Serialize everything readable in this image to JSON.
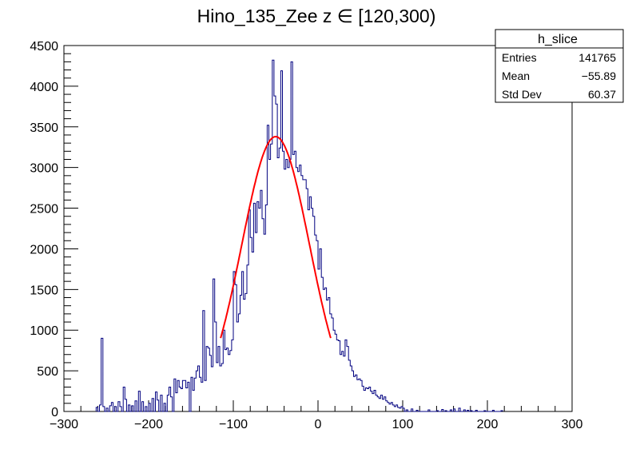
{
  "chart_data": {
    "type": "histogram",
    "title": "Hino_135_Zee z  ∈ [120,300)",
    "xlabel": "",
    "ylabel": "",
    "xlim": [
      -300,
      300
    ],
    "ylim": [
      0,
      4500
    ],
    "x_ticks": [
      -300,
      -200,
      -100,
      0,
      100,
      200,
      300
    ],
    "x_tick_labels": [
      "−300",
      "−200",
      "−100",
      "0",
      "100",
      "200",
      "300"
    ],
    "y_ticks": [
      0,
      500,
      1000,
      1500,
      2000,
      2500,
      3000,
      3500,
      4000,
      4500
    ],
    "y_tick_labels": [
      "0",
      "500",
      "1000",
      "1500",
      "2000",
      "2500",
      "3000",
      "3500",
      "4000",
      "4500"
    ],
    "histogram_color": "#000080",
    "fit_color": "#ff0000",
    "stats_box": {
      "name": "h_slice",
      "rows": [
        {
          "label": "Entries",
          "value": "141765"
        },
        {
          "label": "Mean",
          "value": "−55.89"
        },
        {
          "label": "Std Dev",
          "value": "60.37"
        }
      ]
    },
    "fit": {
      "type": "gaussian",
      "amplitude": 3380,
      "mean": -50,
      "sigma": 40,
      "range": [
        -115,
        15
      ]
    },
    "histogram": {
      "bin_width": 2,
      "bins": [
        [
          -262,
          50
        ],
        [
          -258,
          80
        ],
        [
          -256,
          900
        ],
        [
          -254,
          60
        ],
        [
          -250,
          40
        ],
        [
          -246,
          70
        ],
        [
          -244,
          110
        ],
        [
          -240,
          60
        ],
        [
          -236,
          120
        ],
        [
          -234,
          60
        ],
        [
          -230,
          300
        ],
        [
          -228,
          150
        ],
        [
          -224,
          80
        ],
        [
          -220,
          70
        ],
        [
          -216,
          130
        ],
        [
          -212,
          250
        ],
        [
          -208,
          120
        ],
        [
          -204,
          60
        ],
        [
          -200,
          100
        ],
        [
          -196,
          160
        ],
        [
          -192,
          240
        ],
        [
          -190,
          140
        ],
        [
          -186,
          200
        ],
        [
          -182,
          100
        ],
        [
          -178,
          200
        ],
        [
          -176,
          300
        ],
        [
          -174,
          180
        ],
        [
          -170,
          400
        ],
        [
          -168,
          230
        ],
        [
          -166,
          380
        ],
        [
          -164,
          300
        ],
        [
          -162,
          280
        ],
        [
          -160,
          380
        ],
        [
          -158,
          380
        ],
        [
          -156,
          290
        ],
        [
          -154,
          360
        ],
        [
          -150,
          420
        ],
        [
          -148,
          260
        ],
        [
          -146,
          410
        ],
        [
          -144,
          500
        ],
        [
          -142,
          560
        ],
        [
          -140,
          420
        ],
        [
          -138,
          360
        ],
        [
          -136,
          1240
        ],
        [
          -134,
          380
        ],
        [
          -132,
          800
        ],
        [
          -130,
          780
        ],
        [
          -128,
          690
        ],
        [
          -126,
          550
        ],
        [
          -124,
          1630
        ],
        [
          -122,
          1100
        ],
        [
          -120,
          600
        ],
        [
          -118,
          800
        ],
        [
          -116,
          560
        ],
        [
          -114,
          590
        ],
        [
          -112,
          1000
        ],
        [
          -110,
          760
        ],
        [
          -108,
          780
        ],
        [
          -106,
          700
        ],
        [
          -104,
          750
        ],
        [
          -102,
          880
        ],
        [
          -100,
          1720
        ],
        [
          -98,
          1560
        ],
        [
          -96,
          1100
        ],
        [
          -94,
          1200
        ],
        [
          -92,
          1430
        ],
        [
          -90,
          1720
        ],
        [
          -88,
          1380
        ],
        [
          -86,
          1450
        ],
        [
          -84,
          1800
        ],
        [
          -82,
          2480
        ],
        [
          -80,
          2140
        ],
        [
          -78,
          1960
        ],
        [
          -76,
          2560
        ],
        [
          -74,
          2200
        ],
        [
          -72,
          2580
        ],
        [
          -70,
          2500
        ],
        [
          -68,
          2720
        ],
        [
          -66,
          2370
        ],
        [
          -64,
          2180
        ],
        [
          -62,
          2540
        ],
        [
          -60,
          3520
        ],
        [
          -58,
          3100
        ],
        [
          -56,
          3290
        ],
        [
          -54,
          4320
        ],
        [
          -52,
          3880
        ],
        [
          -50,
          3780
        ],
        [
          -48,
          3120
        ],
        [
          -46,
          3240
        ],
        [
          -44,
          4190
        ],
        [
          -42,
          3200
        ],
        [
          -40,
          2980
        ],
        [
          -38,
          3100
        ],
        [
          -36,
          3000
        ],
        [
          -34,
          3100
        ],
        [
          -32,
          4300
        ],
        [
          -30,
          3160
        ],
        [
          -28,
          3200
        ],
        [
          -26,
          3000
        ],
        [
          -24,
          2950
        ],
        [
          -22,
          3030
        ],
        [
          -20,
          2900
        ],
        [
          -18,
          2850
        ],
        [
          -16,
          2850
        ],
        [
          -14,
          2740
        ],
        [
          -12,
          2480
        ],
        [
          -10,
          2640
        ],
        [
          -8,
          2500
        ],
        [
          -6,
          2400
        ],
        [
          -4,
          2170
        ],
        [
          -2,
          2100
        ],
        [
          0,
          1750
        ],
        [
          2,
          2000
        ],
        [
          4,
          1650
        ],
        [
          6,
          1500
        ],
        [
          8,
          1520
        ],
        [
          10,
          1370
        ],
        [
          12,
          1400
        ],
        [
          14,
          1200
        ],
        [
          16,
          1150
        ],
        [
          18,
          1000
        ],
        [
          20,
          950
        ],
        [
          22,
          880
        ],
        [
          24,
          870
        ],
        [
          26,
          700
        ],
        [
          28,
          740
        ],
        [
          30,
          680
        ],
        [
          32,
          880
        ],
        [
          34,
          800
        ],
        [
          36,
          630
        ],
        [
          38,
          560
        ],
        [
          40,
          500
        ],
        [
          42,
          430
        ],
        [
          44,
          450
        ],
        [
          46,
          390
        ],
        [
          48,
          400
        ],
        [
          50,
          380
        ],
        [
          52,
          310
        ],
        [
          54,
          260
        ],
        [
          56,
          290
        ],
        [
          58,
          280
        ],
        [
          60,
          300
        ],
        [
          62,
          250
        ],
        [
          64,
          220
        ],
        [
          66,
          260
        ],
        [
          68,
          200
        ],
        [
          70,
          180
        ],
        [
          72,
          160
        ],
        [
          74,
          200
        ],
        [
          76,
          150
        ],
        [
          78,
          180
        ],
        [
          80,
          130
        ],
        [
          82,
          110
        ],
        [
          84,
          90
        ],
        [
          86,
          110
        ],
        [
          88,
          80
        ],
        [
          90,
          60
        ],
        [
          92,
          80
        ],
        [
          94,
          50
        ],
        [
          96,
          40
        ],
        [
          98,
          60
        ],
        [
          100,
          40
        ],
        [
          104,
          20
        ],
        [
          110,
          30
        ],
        [
          116,
          15
        ],
        [
          130,
          20
        ],
        [
          140,
          10
        ],
        [
          146,
          25
        ],
        [
          150,
          10
        ],
        [
          156,
          20
        ],
        [
          160,
          30
        ],
        [
          166,
          40
        ],
        [
          172,
          20
        ],
        [
          176,
          15
        ],
        [
          180,
          10
        ],
        [
          186,
          15
        ],
        [
          196,
          10
        ],
        [
          206,
          15
        ],
        [
          216,
          10
        ]
      ]
    }
  }
}
